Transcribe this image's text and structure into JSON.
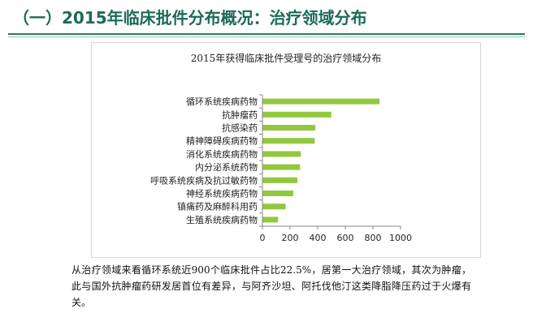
{
  "slide": {
    "title": "（一）2015年临床批件分布概况：治疗领域分布",
    "caption": "从治疗领域来看循环系统近900个临床批件占比22.5%，居第一大治疗领域，其次为肿瘤，此与国外抗肿瘤药研发居首位有差异，与阿齐沙坦、阿托伐他汀这类降脂降压药过于火爆有关。"
  },
  "colors": {
    "bar": "#92c83e",
    "title": "#1a6b57",
    "axis": "#888888"
  },
  "chart_data": {
    "type": "bar",
    "orientation": "horizontal",
    "title": "2015年获得临床批件受理号的治疗领域分布",
    "categories": [
      "循环系统疾病药物",
      "抗肿瘤药",
      "抗感染药",
      "精神障碍疾病药物",
      "消化系统疾病药物",
      "内分泌系统药物",
      "呼吸系统疾病及抗过敏药物",
      "神经系统疾病药物",
      "镇痛药及麻醉科用药",
      "生殖系统疾病药物"
    ],
    "values": [
      845,
      495,
      380,
      375,
      275,
      270,
      250,
      220,
      165,
      110
    ],
    "xlim": [
      0,
      1000
    ],
    "xticks": [
      "0",
      "200",
      "400",
      "600",
      "800",
      "1000"
    ],
    "xlabel": "",
    "ylabel": "",
    "grid": false,
    "legend": "none"
  }
}
